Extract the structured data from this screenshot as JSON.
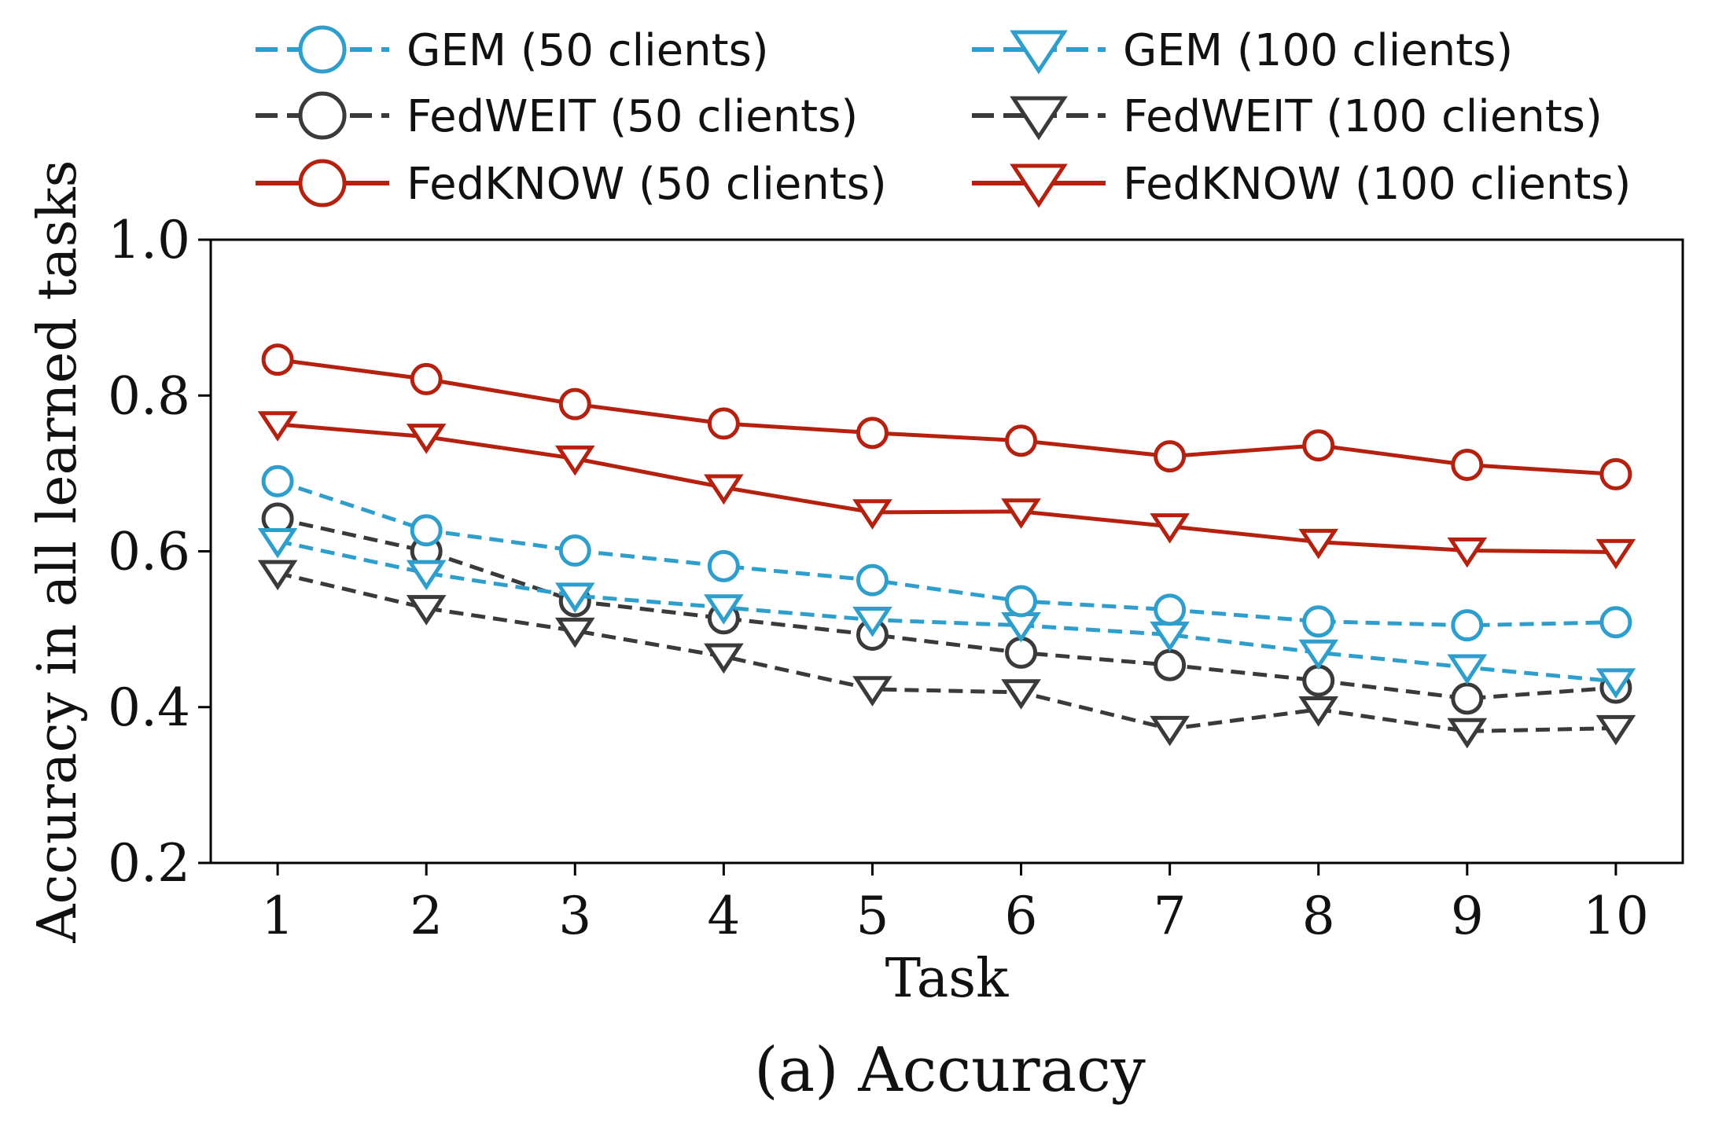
{
  "chart_data": {
    "type": "line",
    "caption": "(a) Accuracy",
    "xlabel": "Task",
    "ylabel": "Accuracy in all learned tasks",
    "x": [
      1,
      2,
      3,
      4,
      5,
      6,
      7,
      8,
      9,
      10
    ],
    "xticks": [
      "1",
      "2",
      "3",
      "4",
      "5",
      "6",
      "7",
      "8",
      "9",
      "10"
    ],
    "ylim": [
      0.2,
      1.0
    ],
    "yticks": [
      "0.2",
      "0.4",
      "0.6",
      "0.8",
      "1.0"
    ],
    "grid": false,
    "legend_position": "top, outside plot, two columns",
    "series": [
      {
        "name": "GEM (50 clients)",
        "color": "#2e9fcc",
        "linestyle": "dashed",
        "marker": "circle",
        "values": [
          0.69,
          0.627,
          0.601,
          0.581,
          0.563,
          0.536,
          0.525,
          0.51,
          0.505,
          0.509
        ]
      },
      {
        "name": "GEM (100 clients)",
        "color": "#2e9fcc",
        "linestyle": "dashed",
        "marker": "triangle-down",
        "values": [
          0.613,
          0.572,
          0.543,
          0.528,
          0.512,
          0.505,
          0.493,
          0.47,
          0.451,
          0.433
        ]
      },
      {
        "name": "FedWEIT (50 clients)",
        "color": "#3a3a3a",
        "linestyle": "dashed",
        "marker": "circle",
        "values": [
          0.642,
          0.6,
          0.536,
          0.514,
          0.493,
          0.47,
          0.454,
          0.434,
          0.411,
          0.425
        ]
      },
      {
        "name": "FedWEIT (100 clients)",
        "color": "#3a3a3a",
        "linestyle": "dashed",
        "marker": "triangle-down",
        "values": [
          0.572,
          0.527,
          0.498,
          0.465,
          0.423,
          0.419,
          0.372,
          0.397,
          0.369,
          0.373
        ]
      },
      {
        "name": "FedKNOW (50 clients)",
        "color": "#b5200f",
        "linestyle": "solid",
        "marker": "circle",
        "values": [
          0.846,
          0.821,
          0.789,
          0.764,
          0.752,
          0.742,
          0.722,
          0.736,
          0.711,
          0.699
        ]
      },
      {
        "name": "FedKNOW (100 clients)",
        "color": "#b5200f",
        "linestyle": "solid",
        "marker": "triangle-down",
        "values": [
          0.763,
          0.747,
          0.719,
          0.682,
          0.65,
          0.651,
          0.632,
          0.612,
          0.601,
          0.599
        ]
      }
    ]
  }
}
